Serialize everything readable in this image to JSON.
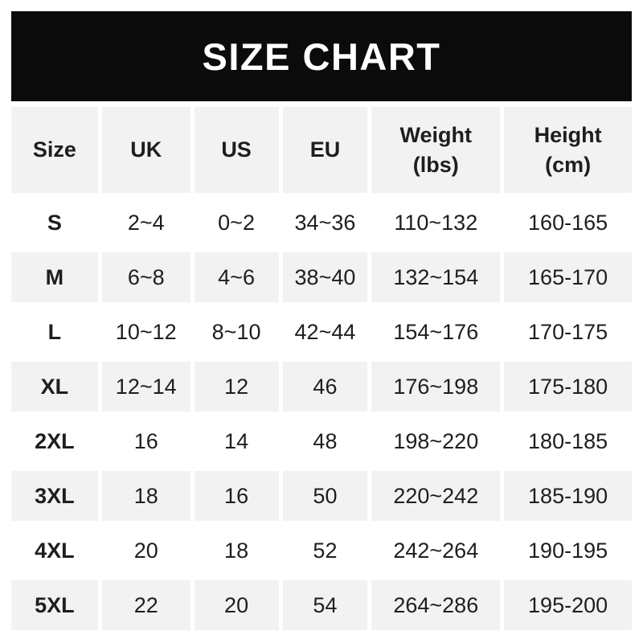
{
  "title": "SIZE CHART",
  "colors": {
    "banner_bg": "#0b0b0b",
    "banner_text": "#ffffff",
    "alt_row_bg": "#f2f2f2",
    "row_bg": "#ffffff",
    "text": "#1e1e1e"
  },
  "chart_data": {
    "type": "table",
    "title": "SIZE CHART",
    "columns": [
      {
        "label": "Size",
        "sublabel": ""
      },
      {
        "label": "UK",
        "sublabel": ""
      },
      {
        "label": "US",
        "sublabel": ""
      },
      {
        "label": "EU",
        "sublabel": ""
      },
      {
        "label": "Weight",
        "sublabel": "(lbs)"
      },
      {
        "label": "Height",
        "sublabel": "(cm)"
      }
    ],
    "rows": [
      [
        "S",
        "2~4",
        "0~2",
        "34~36",
        "110~132",
        "160-165"
      ],
      [
        "M",
        "6~8",
        "4~6",
        "38~40",
        "132~154",
        "165-170"
      ],
      [
        "L",
        "10~12",
        "8~10",
        "42~44",
        "154~176",
        "170-175"
      ],
      [
        "XL",
        "12~14",
        "12",
        "46",
        "176~198",
        "175-180"
      ],
      [
        "2XL",
        "16",
        "14",
        "48",
        "198~220",
        "180-185"
      ],
      [
        "3XL",
        "18",
        "16",
        "50",
        "220~242",
        "185-190"
      ],
      [
        "4XL",
        "20",
        "18",
        "52",
        "242~264",
        "190-195"
      ],
      [
        "5XL",
        "22",
        "20",
        "54",
        "264~286",
        "195-200"
      ]
    ],
    "layout": {
      "header_row_shaded": true,
      "alternating_row_shading": true,
      "first_data_row_shaded": false
    }
  }
}
